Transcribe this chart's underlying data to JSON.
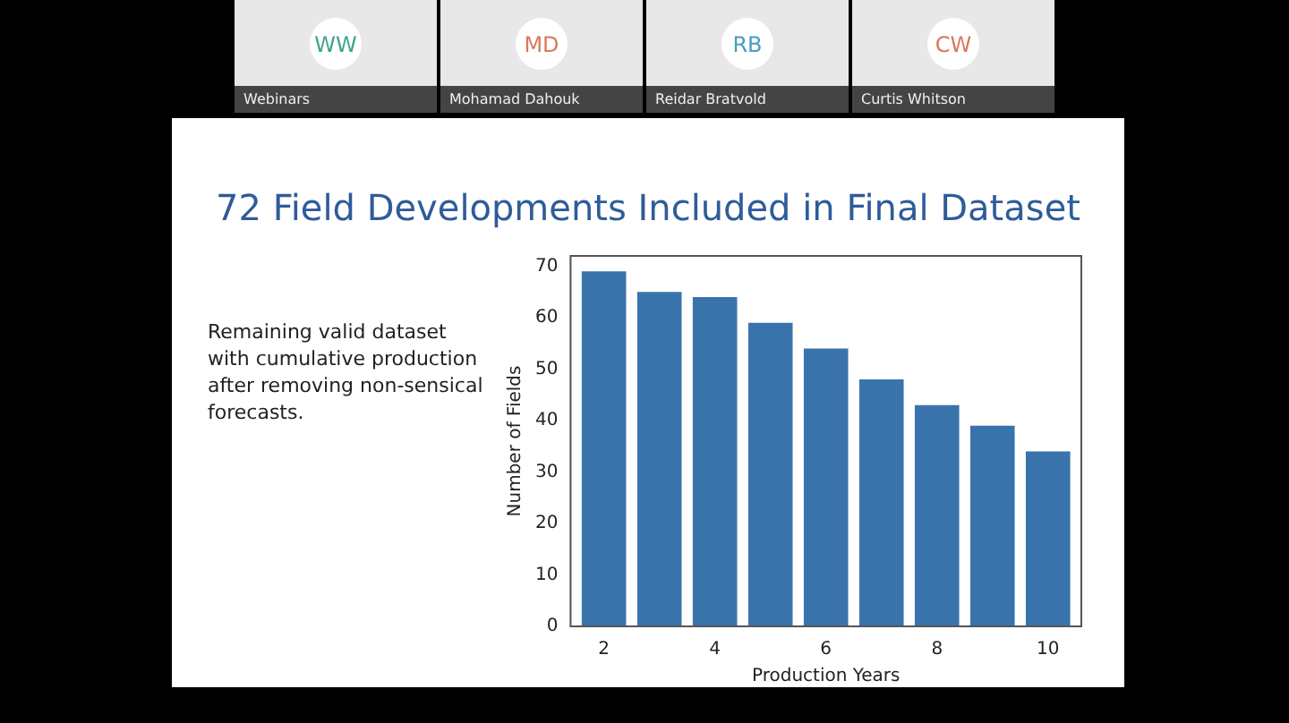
{
  "chart_data": {
    "type": "bar",
    "title": "72 Field Developments Included in Final Dataset",
    "xlabel": "Production Years",
    "ylabel": "Number of Fields",
    "x": [
      2,
      3,
      4,
      5,
      6,
      7,
      8,
      9,
      10
    ],
    "values": [
      69,
      65,
      64,
      59,
      54,
      48,
      43,
      39,
      34
    ],
    "color": "#3a73ab",
    "xlim": [
      1.4,
      10.6
    ],
    "xticks": [
      2,
      4,
      6,
      8,
      10
    ],
    "ylim": [
      0,
      72
    ],
    "yticks": [
      0,
      10,
      20,
      30,
      40,
      50,
      60,
      70
    ],
    "grid": false,
    "legend": false,
    "annotations": [
      "Remaining valid dataset with cumulative production after removing non-sensical forecasts.",
      "WW",
      "Webinars",
      "MD",
      "Mohamad Dahouk",
      "RB",
      "Reidar Bratvold",
      "CW",
      "Curtis Whitson"
    ]
  }
}
